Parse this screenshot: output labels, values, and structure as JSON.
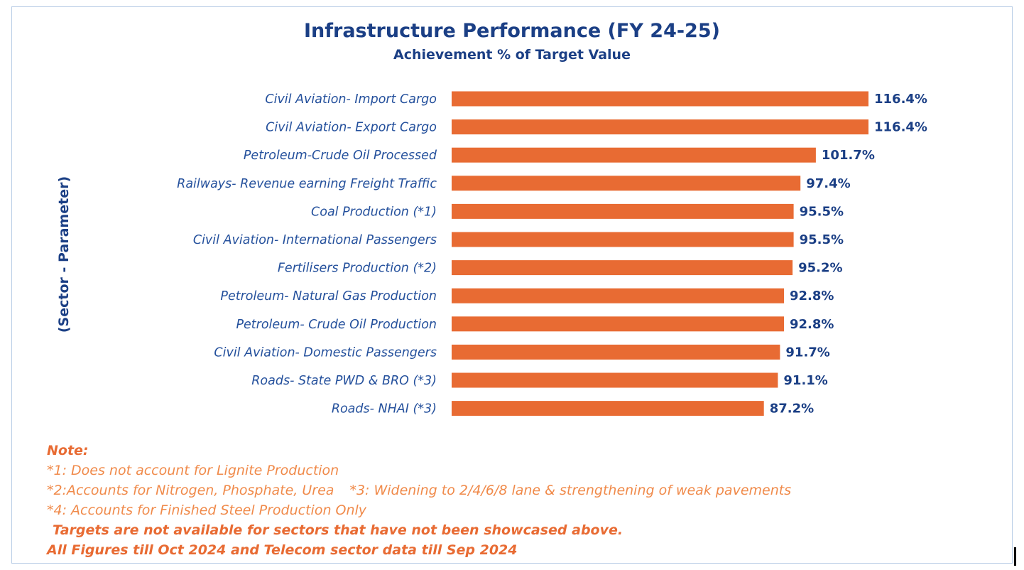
{
  "chart_data": {
    "type": "bar",
    "orientation": "horizontal",
    "title": "Infrastructure Performance (FY 24-25)",
    "subtitle": "Achievement % of Target Value",
    "ylabel": "(Sector - Parameter)",
    "xlabel": "",
    "xlim": [
      0,
      116.4
    ],
    "grid": false,
    "categories": [
      "Civil Aviation- Import Cargo",
      "Civil Aviation- Export Cargo",
      "Petroleum-Crude Oil Processed",
      "Railways- Revenue earning Freight Traffic",
      "Coal Production (*1)",
      "Civil Aviation- International Passengers",
      "Fertilisers Production (*2)",
      "Petroleum- Natural Gas Production",
      "Petroleum- Crude Oil Production",
      "Civil Aviation- Domestic Passengers",
      "Roads- State PWD & BRO (*3)",
      "Roads- NHAI (*3)"
    ],
    "values": [
      116.4,
      116.4,
      101.7,
      97.4,
      95.5,
      95.5,
      95.2,
      92.8,
      92.8,
      91.7,
      91.1,
      87.2
    ],
    "value_labels": [
      "116.4%",
      "116.4%",
      "101.7%",
      "97.4%",
      "95.5%",
      "95.5%",
      "95.2%",
      "92.8%",
      "92.8%",
      "91.7%",
      "91.1%",
      "87.2%"
    ],
    "bar_color": "#e86b33"
  },
  "notes": {
    "heading": "Note:",
    "n1": "*1: Does not account for Lignite Production",
    "n2": "*2:Accounts for Nitrogen, Phosphate, Urea",
    "n3": "*3: Widening to 2/4/6/8 lane & strengthening of weak pavements",
    "n4": "*4: Accounts for Finished Steel Production Only",
    "disclaimer1": "Targets are not available for sectors that have not been showcased above.",
    "disclaimer2": "All Figures till Oct 2024 and Telecom sector data till Sep 2024"
  },
  "colors": {
    "title": "#1b3f85",
    "category_text": "#24509c",
    "bar": "#e86b33",
    "note_text": "#f08a4a"
  }
}
